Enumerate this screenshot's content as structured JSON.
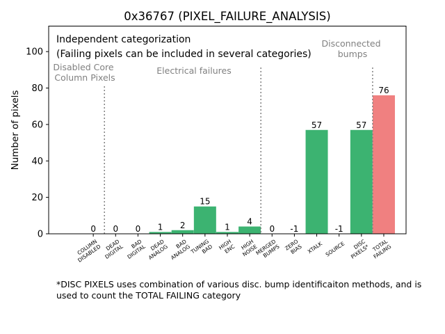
{
  "chart_data": {
    "type": "bar",
    "title": "0x36767 (PIXEL_FAILURE_ANALYSIS)",
    "ylabel": "Number of pixels",
    "xlabel": "",
    "ylim": [
      0,
      114
    ],
    "yticks": [
      0,
      20,
      40,
      60,
      80,
      100
    ],
    "grid": false,
    "categories": [
      [
        "COLUMN",
        "DISABLED"
      ],
      [
        "DEAD",
        "DIGITAL"
      ],
      [
        "BAD",
        "DIGITAL"
      ],
      [
        "DEAD",
        "ANALOG"
      ],
      [
        "BAD",
        "ANALOG"
      ],
      [
        "TUNING",
        "BAD"
      ],
      [
        "HIGH",
        "ENC"
      ],
      [
        "HIGH",
        "NOISE"
      ],
      [
        "MERGED",
        "BUMPS"
      ],
      [
        "ZERO",
        "BIAS"
      ],
      [
        "XTALK"
      ],
      [
        "SOURCE"
      ],
      [
        "DISC",
        "PIXELS*"
      ],
      [
        "TOTAL",
        "FAILING"
      ]
    ],
    "values": [
      0,
      0,
      0,
      1,
      2,
      15,
      1,
      4,
      0,
      -1,
      57,
      -1,
      57,
      76
    ],
    "bar_colors": [
      "#3cb371",
      "#3cb371",
      "#3cb371",
      "#3cb371",
      "#3cb371",
      "#3cb371",
      "#3cb371",
      "#3cb371",
      "#3cb371",
      "#3cb371",
      "#3cb371",
      "#3cb371",
      "#3cb371",
      "#f08080"
    ],
    "separator_after_index": [
      0,
      7,
      12
    ],
    "annotations": {
      "header_line1": "Independent categorization",
      "header_line2": "(Failing pixels can be included in several categories)",
      "group_disabled": [
        "Disabled Core",
        "Column Pixels"
      ],
      "group_electrical": [
        "Electrical failures"
      ],
      "group_disconnected": [
        "Disconnected",
        "bumps"
      ]
    }
  },
  "footnote": "*DISC PIXELS uses combination of various disc. bump identificaiton methods, and is used to count the TOTAL FAILING category"
}
